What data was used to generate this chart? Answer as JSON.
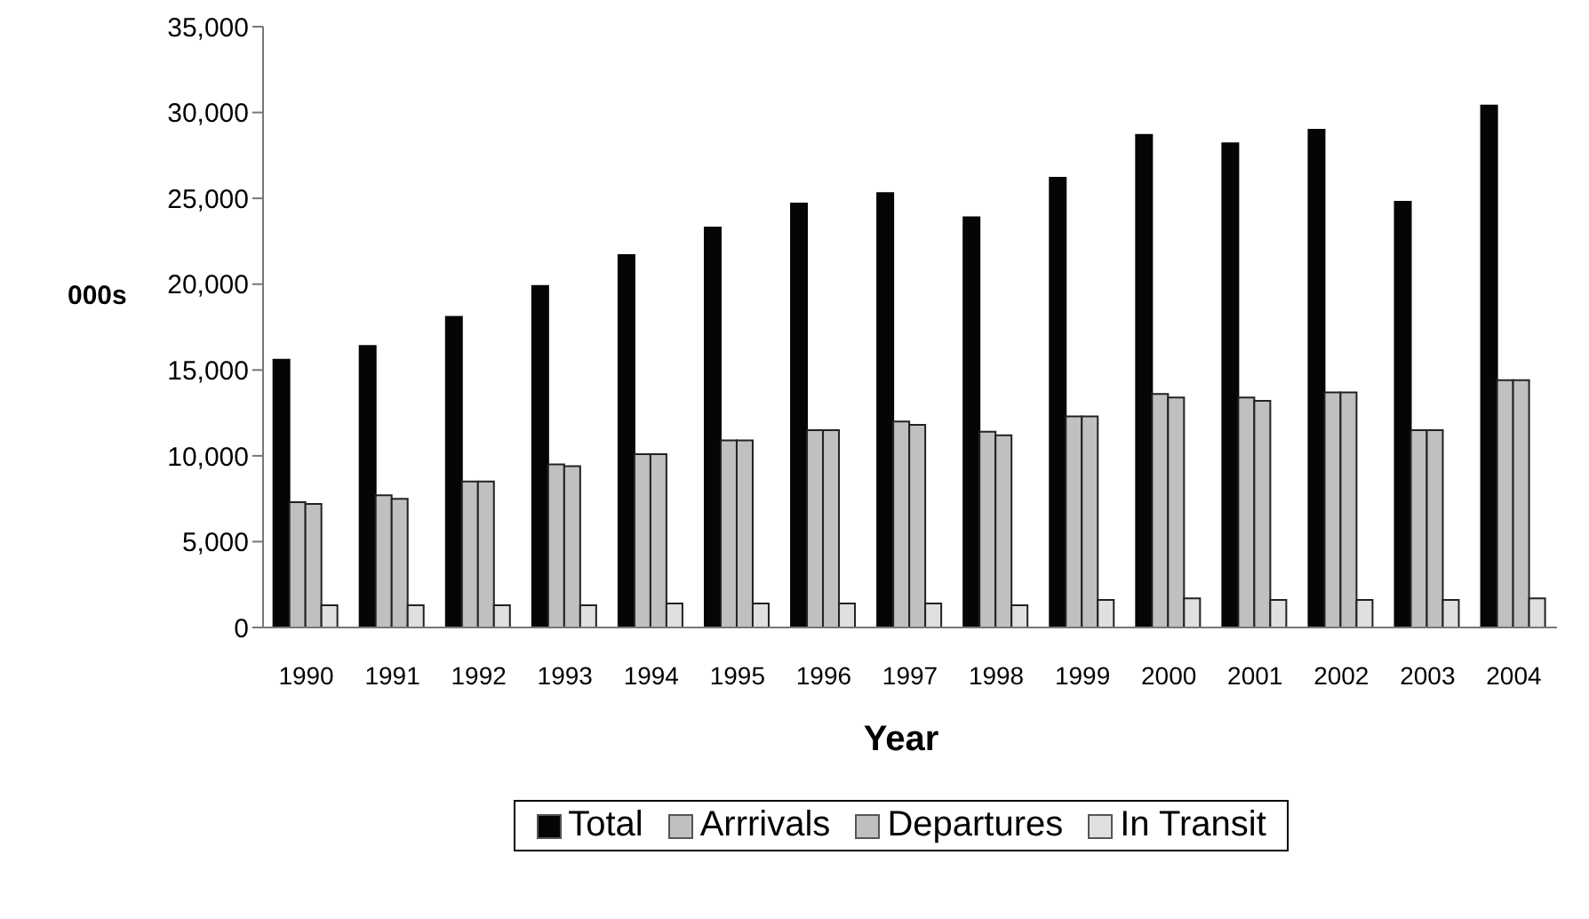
{
  "chart_data": {
    "type": "bar",
    "xlabel": "Year",
    "ylabel": "000s",
    "categories": [
      "1990",
      "1991",
      "1992",
      "1993",
      "1994",
      "1995",
      "1996",
      "1997",
      "1998",
      "1999",
      "2000",
      "2001",
      "2002",
      "2003",
      "2004"
    ],
    "series": [
      {
        "name": "Total",
        "color": "#050505",
        "values": [
          15600,
          16400,
          18100,
          19900,
          21700,
          23300,
          24700,
          25300,
          23900,
          26200,
          28700,
          28200,
          29000,
          24800,
          30400
        ]
      },
      {
        "name": "Arrrivals",
        "color": "#c0c0c0",
        "values": [
          7300,
          7700,
          8500,
          9500,
          10100,
          10900,
          11500,
          12000,
          11400,
          12300,
          13600,
          13400,
          13700,
          11500,
          14400
        ]
      },
      {
        "name": "Departures",
        "color": "#c0c0c0",
        "values": [
          7200,
          7500,
          8500,
          9400,
          10100,
          10900,
          11500,
          11800,
          11200,
          12300,
          13400,
          13200,
          13700,
          11500,
          14400
        ]
      },
      {
        "name": "In Transit",
        "color": "#e0e0e0",
        "values": [
          1300,
          1300,
          1300,
          1300,
          1400,
          1400,
          1400,
          1400,
          1300,
          1600,
          1700,
          1600,
          1600,
          1600,
          1700
        ]
      }
    ],
    "ylim": [
      0,
      35000
    ],
    "yticks": [
      0,
      {
        "value": 5000,
        "label": "5,000"
      },
      {
        "value": 10000,
        "label": "10,000"
      },
      {
        "value": 15000,
        "label": "15,000"
      },
      {
        "value": 20000,
        "label": "20,000"
      },
      {
        "value": 25000,
        "label": "25,000"
      },
      {
        "value": 30000,
        "label": "30,000"
      },
      {
        "value": 35000,
        "label": "35,000"
      }
    ],
    "grid": false,
    "legend": "bottom"
  }
}
